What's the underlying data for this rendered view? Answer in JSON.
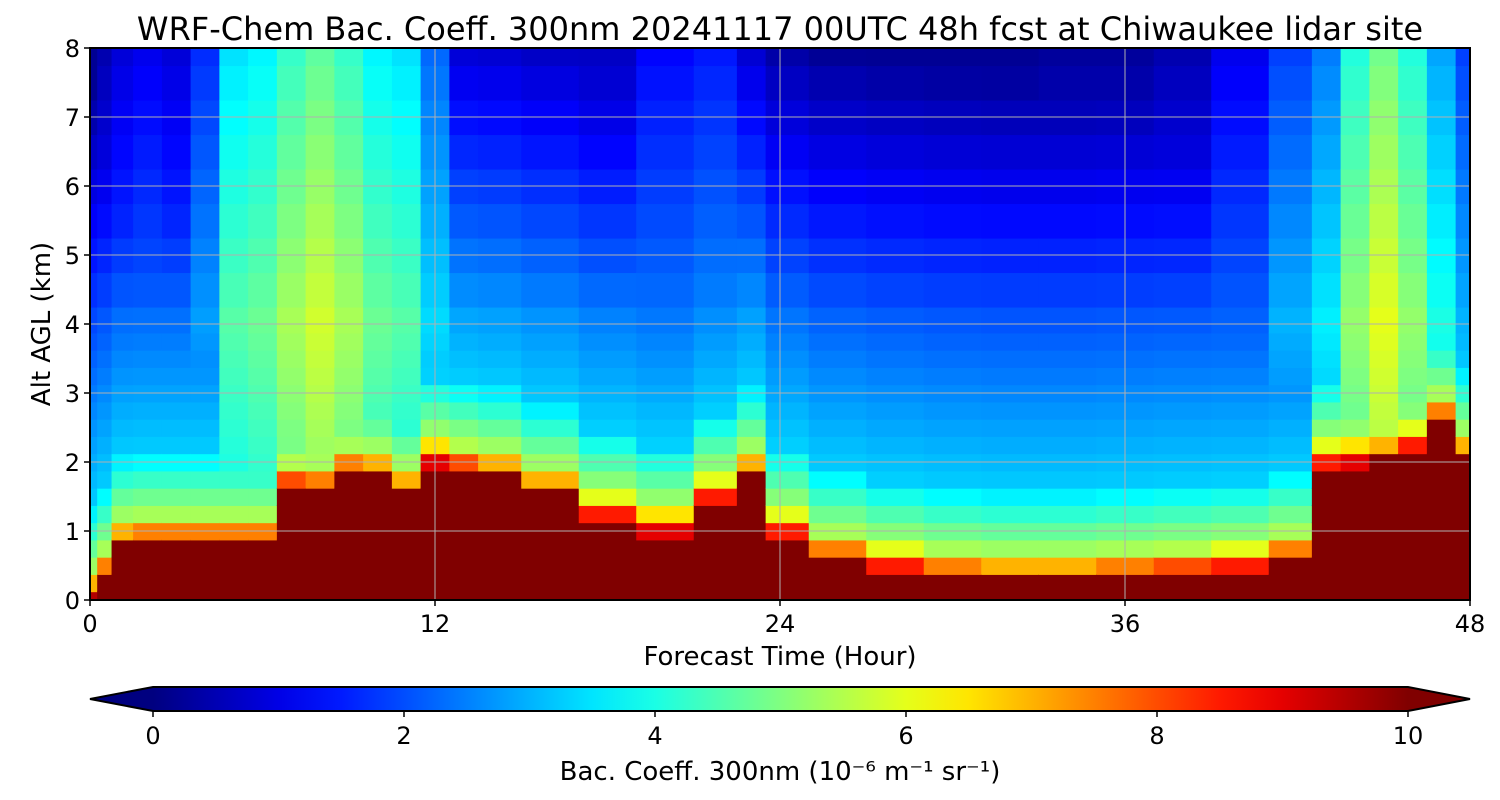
{
  "chart_data": {
    "type": "heatmap",
    "title": "WRF-Chem Bac. Coeff. 300nm  20241117 00UTC 48h fcst at Chiwaukee lidar site",
    "xlabel": "Forecast Time (Hour)",
    "ylabel": "Alt AGL (km)",
    "xlim": [
      0,
      48
    ],
    "ylim": [
      0,
      8
    ],
    "x_ticks": [
      0,
      12,
      24,
      36,
      48
    ],
    "y_ticks": [
      0,
      1,
      2,
      3,
      4,
      5,
      6,
      7,
      8
    ],
    "grid": true,
    "colormap": "jet",
    "colorbar": {
      "orientation": "horizontal",
      "placement": "bottom",
      "range": [
        0,
        10
      ],
      "extend": "both",
      "ticks": [
        0,
        2,
        4,
        6,
        8,
        10
      ],
      "label": "Bac. Coeff. 300nm  (10⁻⁶ m⁻¹ sr⁻¹)"
    },
    "x": [
      0,
      0.5,
      1,
      2,
      3,
      4,
      5,
      6,
      7,
      8,
      9,
      10,
      11,
      12,
      13,
      14,
      16,
      18,
      20,
      22,
      23,
      24,
      26,
      28,
      30,
      32,
      34,
      36,
      38,
      40,
      42,
      43,
      44,
      45,
      46,
      47,
      48
    ],
    "y": [
      0,
      0.25,
      0.5,
      0.75,
      1.0,
      1.25,
      1.5,
      1.75,
      2.0,
      2.25,
      2.5,
      2.75,
      3.0,
      3.25,
      3.5,
      3.75,
      4.0,
      4.5,
      5.0,
      5.5,
      6.0,
      6.5,
      7.0,
      7.5,
      8.0
    ],
    "profiles": {
      "surface_layer_top_km": [
        0.0,
        0.3,
        0.75,
        0.8,
        0.8,
        0.8,
        0.8,
        0.8,
        1.6,
        1.55,
        1.8,
        1.75,
        1.5,
        1.95,
        1.85,
        1.75,
        1.5,
        1.15,
        0.95,
        1.4,
        1.75,
        0.9,
        0.55,
        0.4,
        0.3,
        0.25,
        0.25,
        0.3,
        0.35,
        0.4,
        0.55,
        1.9,
        1.95,
        2.0,
        2.15,
        2.55,
        2.0
      ],
      "upper_plume_peak": [
        1.0,
        1.6,
        2.0,
        2.2,
        2.0,
        2.8,
        4.6,
        4.8,
        5.4,
        5.8,
        5.4,
        4.8,
        4.6,
        3.4,
        1.8,
        1.6,
        1.4,
        1.8,
        2.4,
        2.6,
        1.8,
        1.4,
        1.2,
        1.2,
        1.2,
        1.2,
        1.4,
        1.4,
        1.6,
        2.2,
        3.0,
        3.6,
        5.2,
        6.0,
        5.2,
        4.0,
        3.0
      ]
    }
  }
}
